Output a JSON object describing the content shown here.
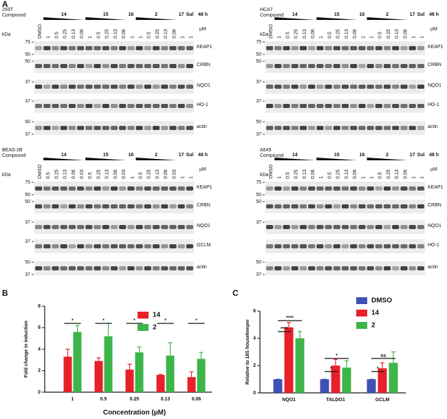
{
  "panel_labels": [
    "A",
    "B",
    "C"
  ],
  "blots": [
    {
      "title": "293T",
      "compound_label": "Compound",
      "groups": [
        "14",
        "15",
        "16",
        "2",
        "17",
        "Sul"
      ],
      "time": "48 h",
      "kda_label": "kDa",
      "unit": "µM",
      "lanes": [
        "DMSO",
        "1",
        "0.5",
        "0.25",
        "0.13",
        "0.06",
        "1",
        "0.5",
        "0.25",
        "0.13",
        "0.06",
        "1",
        "1",
        "0.5",
        "0.25",
        "0.13",
        "0.06",
        "1",
        "1"
      ],
      "rows": [
        {
          "protein": "KEAP1",
          "markers": [
            "75",
            "50"
          ]
        },
        {
          "protein": "CRBN",
          "markers": [
            "50"
          ]
        },
        {
          "protein": "NQO1",
          "markers": [
            "37"
          ]
        },
        {
          "protein": "HO-1",
          "markers": [
            "37"
          ]
        },
        {
          "protein": "actin",
          "markers": [
            "50",
            "37"
          ]
        }
      ]
    },
    {
      "title": "HCA7",
      "compound_label": "Compound",
      "groups": [
        "14",
        "15",
        "16",
        "2",
        "17",
        "Sul"
      ],
      "time": "48 h",
      "kda_label": "kDa",
      "unit": "µM",
      "lanes": [
        "DMSO",
        "1",
        "0.5",
        "0.25",
        "0.13",
        "0.06",
        "1",
        "0.5",
        "0.25",
        "0.13",
        "0.06",
        "1",
        "1",
        "0.5",
        "0.25",
        "0.13",
        "0.06",
        "1",
        "1"
      ],
      "rows": [
        {
          "protein": "KEAP1",
          "markers": [
            "75",
            "50"
          ]
        },
        {
          "protein": "CRBN",
          "markers": [
            "50"
          ]
        },
        {
          "protein": "NQO1",
          "markers": [
            "37"
          ]
        },
        {
          "protein": "HO-1",
          "markers": [
            "37"
          ]
        },
        {
          "protein": "actin",
          "markers": [
            "50",
            "37"
          ]
        }
      ]
    },
    {
      "title": "BEAS-2B",
      "compound_label": "Compound",
      "groups": [
        "14",
        "15",
        "16",
        "2",
        "17",
        "Sul"
      ],
      "time": "48 h",
      "kda_label": "kDa",
      "unit": "µM",
      "lanes": [
        "DMSO",
        "0.5",
        "0.25",
        "0.13",
        "0.06",
        "0.03",
        "0.5",
        "0.25",
        "0.13",
        "0.06",
        "0.03",
        "1",
        "0.5",
        "0.25",
        "0.13",
        "0.06",
        "0.03",
        "1",
        "1"
      ],
      "rows": [
        {
          "protein": "KEAP1",
          "markers": [
            "75",
            "50"
          ]
        },
        {
          "protein": "CRBN",
          "markers": [
            "50"
          ]
        },
        {
          "protein": "NQO1",
          "markers": [
            "37"
          ]
        },
        {
          "protein": "GCLM",
          "markers": [
            "37"
          ]
        },
        {
          "protein": "actin",
          "markers": [
            "50",
            "37"
          ]
        }
      ]
    },
    {
      "title": "A549",
      "compound_label": "Compound",
      "groups": [
        "14",
        "15",
        "16",
        "2",
        "17",
        "Sul"
      ],
      "time": "48 h",
      "kda_label": "kDa",
      "unit": "µM",
      "lanes": [
        "DMSO",
        "1",
        "0.5",
        "0.25",
        "0.13",
        "0.06",
        "1",
        "0.5",
        "0.25",
        "0.13",
        "0.06",
        "1",
        "1",
        "0.5",
        "0.25",
        "0.13",
        "0.06",
        "1",
        "1"
      ],
      "rows": [
        {
          "protein": "KEAP1",
          "markers": [
            "75",
            "50"
          ]
        },
        {
          "protein": "CRBN",
          "markers": [
            "50"
          ]
        },
        {
          "protein": "NQO1",
          "markers": [
            "37"
          ]
        },
        {
          "protein": "HO-1",
          "markers": []
        },
        {
          "protein": "actin",
          "markers": [
            "50",
            "37"
          ]
        }
      ]
    }
  ],
  "chart_data": [
    {
      "type": "bar",
      "x_label": "Concentration (µM)",
      "y_label": "Fold change in induction",
      "categories": [
        "1",
        "0.5",
        "0.25",
        "0.13",
        "0.06"
      ],
      "series": [
        {
          "name": "14",
          "color": "#e8202a",
          "values": [
            3.3,
            2.9,
            2.1,
            1.6,
            1.4
          ],
          "errors": [
            0.7,
            0.3,
            0.5,
            0.05,
            0.5
          ]
        },
        {
          "name": "2",
          "color": "#3cb54a",
          "values": [
            5.6,
            5.2,
            3.7,
            3.4,
            3.1
          ],
          "errors": [
            0.6,
            1.2,
            0.5,
            1.2,
            0.6
          ]
        }
      ],
      "ylim": [
        0,
        8
      ],
      "yticks": [
        0,
        2,
        4,
        6,
        8
      ],
      "annotations": [
        "*",
        "*",
        "*",
        "*",
        "*"
      ]
    },
    {
      "type": "bar",
      "y_label": "Relative to 18S housekeeper",
      "categories": [
        "NQO1",
        "TALDO1",
        "GCLM"
      ],
      "series": [
        {
          "name": "DMSO",
          "color": "#3f51b5",
          "values": [
            1,
            1,
            1
          ],
          "errors": [
            0,
            0,
            0
          ]
        },
        {
          "name": "14",
          "color": "#e8202a",
          "values": [
            4.8,
            2.0,
            1.8
          ],
          "errors": [
            0.35,
            0.45,
            0.4
          ]
        },
        {
          "name": "2",
          "color": "#3cb54a",
          "values": [
            4.0,
            1.85,
            2.2
          ],
          "errors": [
            0.5,
            0.5,
            0.8
          ]
        }
      ],
      "ylim": [
        0,
        6
      ],
      "yticks": [
        0,
        2,
        4,
        6
      ],
      "annotations": [
        "****",
        "****",
        "*",
        "*",
        "ns",
        "*"
      ]
    }
  ]
}
